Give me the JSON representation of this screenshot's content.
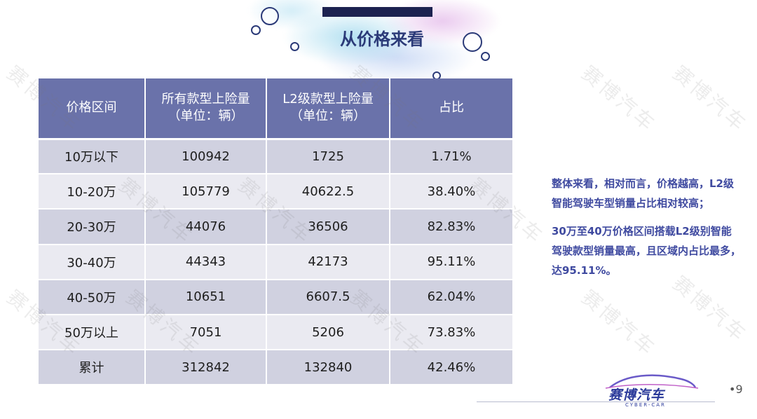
{
  "slide": {
    "title": "从价格来看",
    "page_number": "•9"
  },
  "table": {
    "headers": [
      [
        "价格区间"
      ],
      [
        "所有款型上险量",
        "（单位：辆）"
      ],
      [
        "L2级款型上险量",
        "（单位：辆）"
      ],
      [
        "占比"
      ]
    ],
    "rows": [
      [
        "10万以下",
        "100942",
        "1725",
        "1.71%"
      ],
      [
        "10-20万",
        "105779",
        "40622.5",
        "38.40%"
      ],
      [
        "20-30万",
        "44076",
        "36506",
        "82.83%"
      ],
      [
        "30-40万",
        "44343",
        "42173",
        "95.11%"
      ],
      [
        "40-50万",
        "10651",
        "6607.5",
        "62.04%"
      ],
      [
        "50万以上",
        "7051",
        "5206",
        "73.83%"
      ],
      [
        "累计",
        "312842",
        "132840",
        "42.46%"
      ]
    ]
  },
  "summary": [
    "整体来看，相对而言，价格越高，L2级智能驾驶车型销量占比相对较高；",
    "30万至40万价格区间搭载L2级别智能驾驶款型销量最高，且区域内占比最多，达95.11%。"
  ],
  "logo": {
    "name": "赛博汽车",
    "sub": "CYBER-CAR"
  },
  "watermark": "赛博汽车",
  "colors": {
    "header_bg": "#6a72aa",
    "row_odd": "#d0d1e0",
    "row_even": "#eaeaf1",
    "accent_text": "#3f4aa0",
    "title_bar": "#1c2250"
  }
}
